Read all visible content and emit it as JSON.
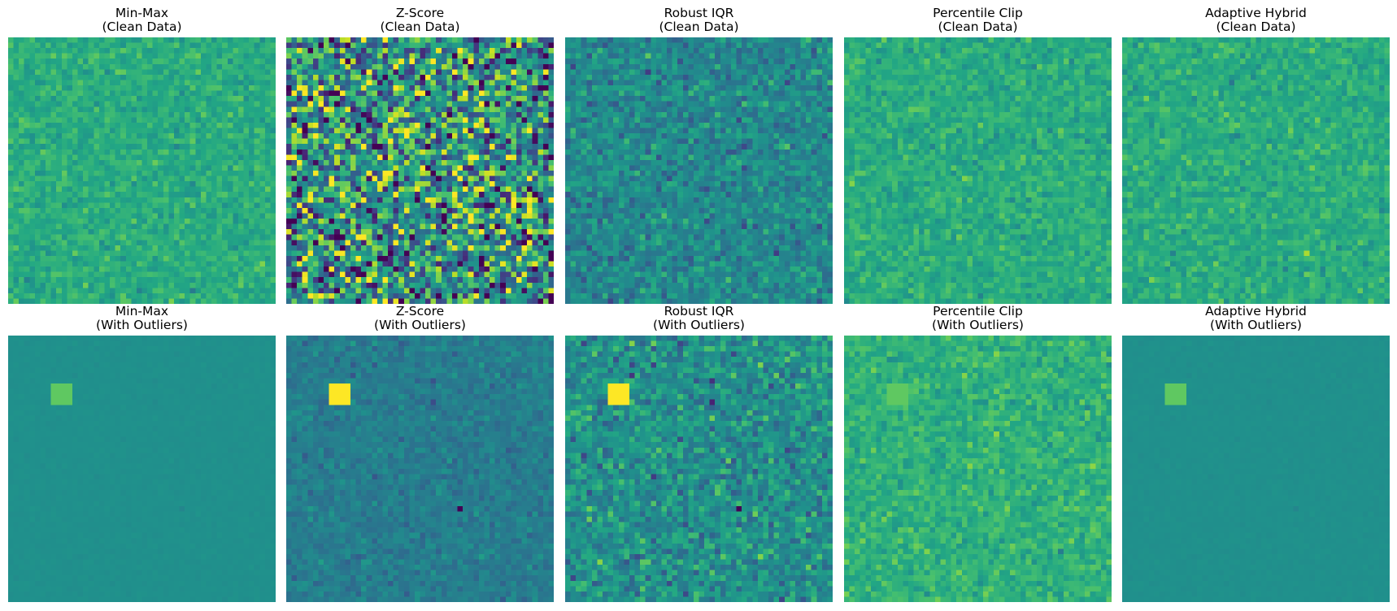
{
  "figure": {
    "rows": [
      {
        "condition": "(Clean Data)",
        "panels": [
          {
            "method": "Min-Max",
            "condition": "(Clean Data)",
            "style": "narrow_green",
            "highlight": false
          },
          {
            "method": "Z-Score",
            "condition": "(Clean Data)",
            "style": "full_viridis",
            "highlight": false
          },
          {
            "method": "Robust IQR",
            "condition": "(Clean Data)",
            "style": "iqr_mid",
            "highlight": false
          },
          {
            "method": "Percentile Clip",
            "condition": "(Clean Data)",
            "style": "narrow_green",
            "highlight": false
          },
          {
            "method": "Adaptive Hybrid",
            "condition": "(Clean Data)",
            "style": "narrow_green",
            "highlight": false
          }
        ]
      },
      {
        "condition": "(With Outliers)",
        "panels": [
          {
            "method": "Min-Max",
            "condition": "(With Outliers)",
            "style": "flat_teal",
            "highlight": true,
            "spot_color": "#5ec962"
          },
          {
            "method": "Z-Score",
            "condition": "(With Outliers)",
            "style": "dark_teal",
            "highlight": true,
            "spot_color": "#fde725"
          },
          {
            "method": "Robust IQR",
            "condition": "(With Outliers)",
            "style": "iqr_wide",
            "highlight": true,
            "spot_color": "#fde725"
          },
          {
            "method": "Percentile Clip",
            "condition": "(With Outliers)",
            "style": "narrow_green_outliers",
            "highlight": true,
            "spot_color": "#5ec962"
          },
          {
            "method": "Adaptive Hybrid",
            "condition": "(With Outliers)",
            "style": "flat_teal",
            "highlight": true,
            "spot_color": "#5ec962"
          }
        ]
      }
    ]
  },
  "chart_data": {
    "type": "heatmap",
    "colormap": "viridis",
    "grid_size": [
      50,
      50
    ],
    "axes_visible": false,
    "high_outlier_block": {
      "rows": [
        9,
        12
      ],
      "cols": [
        8,
        11
      ]
    },
    "low_outlier_pixel": {
      "row": 32,
      "col": 32
    },
    "colors": {
      "outlier_high": "#fde725",
      "outlier_low": "#440154",
      "flat": "#21918c"
    }
  }
}
